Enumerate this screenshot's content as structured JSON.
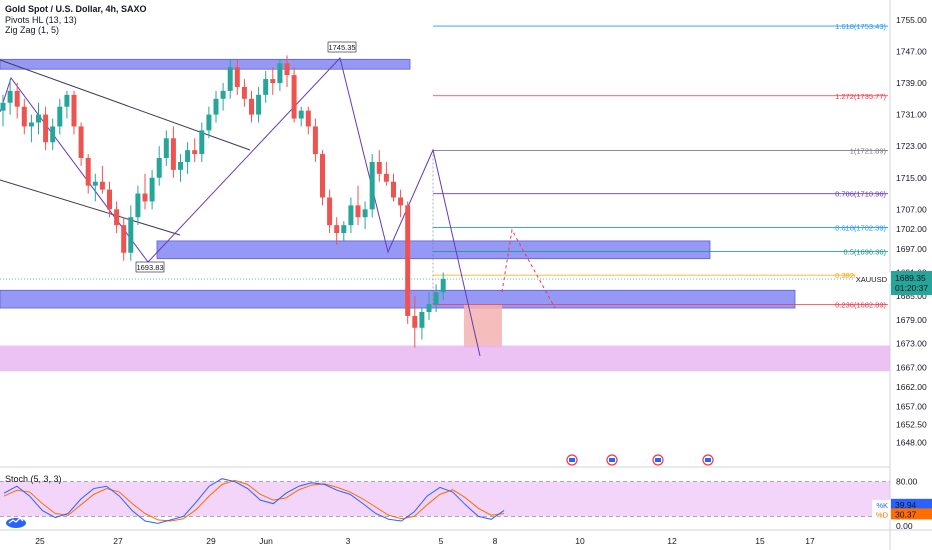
{
  "legend": {
    "title": "Gold Spot / U.S. Dollar, 4h, SAXO",
    "indicators": [
      "Pivots HL (13, 13)",
      "Zig Zag (1, 5)"
    ]
  },
  "colors": {
    "up": "#26a69a",
    "down": "#ef5350",
    "zone_blue": "#7b7ff2",
    "zone_pink": "#e7b3f2",
    "fib_blue": "#2196f3",
    "fib_red": "#f23645",
    "fib_purple": "#673ab7",
    "fib_teal": "#089981",
    "fib_orange": "#f7a600",
    "fib_gray": "#787b86",
    "stoch_k": "#2962ff",
    "stoch_d": "#ff6d00"
  },
  "chart_data": {
    "type": "candlestick",
    "symbol": "XAUUSD",
    "interval": "4h",
    "ylim": [
      1643,
      1758
    ],
    "y_ticks": [
      "1755.00",
      "1747.00",
      "1739.00",
      "1731.00",
      "1723.00",
      "1715.00",
      "1707.00",
      "1702.00",
      "1697.00",
      "1691.00",
      "1685.00",
      "1679.00",
      "1673.00",
      "1667.00",
      "1662.00",
      "1657.00",
      "1652.50",
      "1648.00"
    ],
    "x_ticks": [
      "25",
      "27",
      "29",
      "Jun",
      "3",
      "5",
      "8",
      "10",
      "12",
      "15",
      "17"
    ],
    "last_price": "1689.35",
    "countdown": "01:20:37",
    "pivot_labels": [
      {
        "text": "1745.35",
        "value": 1745.35
      },
      {
        "text": "1693.83",
        "value": 1693.83
      }
    ],
    "fib_levels": [
      {
        "label": "1.618(1753.43)",
        "value": 1753.43,
        "color": "#2196f3"
      },
      {
        "label": "1.272(1735.77)",
        "value": 1735.77,
        "color": "#f23645"
      },
      {
        "label": "1(1721.89)",
        "value": 1721.89,
        "color": "#787b86"
      },
      {
        "label": "0.786(1710.96)",
        "value": 1710.96,
        "color": "#673ab7"
      },
      {
        "label": "0.618(1702.39)",
        "value": 1702.39,
        "color": "#2196f3"
      },
      {
        "label": "0.5(1696.36)",
        "value": 1696.36,
        "color": "#089981"
      },
      {
        "label": "0.382(1690.34)",
        "value": 1690.34,
        "color": "#f7a600"
      },
      {
        "label": "0.236(1682.89)",
        "value": 1682.89,
        "color": "#f23645"
      }
    ],
    "candles": [
      [
        1732,
        1736,
        1728,
        1734
      ],
      [
        1734,
        1740,
        1731,
        1737
      ],
      [
        1737,
        1739,
        1730,
        1733
      ],
      [
        1733,
        1735,
        1726,
        1728
      ],
      [
        1728,
        1731,
        1724,
        1729
      ],
      [
        1729,
        1734,
        1726,
        1731
      ],
      [
        1731,
        1733,
        1722,
        1724
      ],
      [
        1724,
        1730,
        1722,
        1728
      ],
      [
        1728,
        1735,
        1726,
        1733
      ],
      [
        1733,
        1737,
        1730,
        1736
      ],
      [
        1736,
        1737,
        1726,
        1728
      ],
      [
        1728,
        1729,
        1718,
        1720
      ],
      [
        1720,
        1721,
        1711,
        1713
      ],
      [
        1713,
        1716,
        1709,
        1714
      ],
      [
        1714,
        1718,
        1711,
        1712
      ],
      [
        1712,
        1714,
        1705,
        1707
      ],
      [
        1707,
        1709,
        1701,
        1703
      ],
      [
        1703,
        1705,
        1694,
        1696
      ],
      [
        1696,
        1708,
        1694,
        1705
      ],
      [
        1705,
        1713,
        1703,
        1711
      ],
      [
        1711,
        1716,
        1707,
        1709
      ],
      [
        1709,
        1717,
        1707,
        1715
      ],
      [
        1715,
        1723,
        1713,
        1720
      ],
      [
        1720,
        1727,
        1718,
        1725
      ],
      [
        1725,
        1728,
        1715,
        1717
      ],
      [
        1717,
        1721,
        1714,
        1719
      ],
      [
        1719,
        1724,
        1716,
        1722
      ],
      [
        1722,
        1725,
        1719,
        1721
      ],
      [
        1721,
        1729,
        1719,
        1727
      ],
      [
        1727,
        1733,
        1725,
        1731
      ],
      [
        1731,
        1737,
        1729,
        1735
      ],
      [
        1735,
        1739,
        1732,
        1737
      ],
      [
        1737,
        1745,
        1735,
        1743
      ],
      [
        1743,
        1745,
        1736,
        1738
      ],
      [
        1738,
        1740,
        1733,
        1735
      ],
      [
        1735,
        1737,
        1729,
        1731
      ],
      [
        1731,
        1738,
        1729,
        1736
      ],
      [
        1736,
        1742,
        1734,
        1740
      ],
      [
        1740,
        1743,
        1736,
        1739
      ],
      [
        1739,
        1745,
        1737,
        1744
      ],
      [
        1744,
        1746,
        1738,
        1741
      ],
      [
        1741,
        1743,
        1729,
        1730
      ],
      [
        1730,
        1733,
        1728,
        1732
      ],
      [
        1732,
        1733,
        1726,
        1728
      ],
      [
        1728,
        1730,
        1719,
        1721
      ],
      [
        1721,
        1722,
        1708,
        1710
      ],
      [
        1710,
        1712,
        1701,
        1703
      ],
      [
        1703,
        1705,
        1698,
        1701
      ],
      [
        1701,
        1704,
        1699,
        1703
      ],
      [
        1703,
        1710,
        1701,
        1708
      ],
      [
        1708,
        1713,
        1703,
        1705
      ],
      [
        1705,
        1709,
        1702,
        1707
      ],
      [
        1707,
        1721,
        1705,
        1719
      ],
      [
        1719,
        1722,
        1714,
        1716
      ],
      [
        1716,
        1719,
        1713,
        1714
      ],
      [
        1714,
        1716,
        1709,
        1710
      ],
      [
        1710,
        1712,
        1705,
        1708
      ],
      [
        1708,
        1709,
        1678,
        1680
      ],
      [
        1680,
        1685,
        1672,
        1677
      ],
      [
        1677,
        1682,
        1674,
        1681
      ],
      [
        1681,
        1686,
        1679,
        1683
      ],
      [
        1683,
        1688,
        1681,
        1686
      ],
      [
        1686,
        1691,
        1684,
        1689.35
      ]
    ],
    "zones": [
      {
        "from": 1745,
        "to": 1742.5,
        "color": "#7b7ff2"
      },
      {
        "from": 1699,
        "to": 1694.5,
        "color": "#7b7ff2"
      },
      {
        "from": 1686.5,
        "to": 1682,
        "color": "#7b7ff2"
      },
      {
        "from": 1683,
        "to": 1672,
        "color": "#f4b2b2"
      },
      {
        "from": 1672.5,
        "to": 1666,
        "color": "#e7b3f2"
      }
    ],
    "stochastic": {
      "title": "Stoch (5, 3, 3)",
      "k_label": "%K",
      "k_value": "39.94",
      "d_label": "%D",
      "d_value": "30.37",
      "y_ticks": [
        "80.00",
        "20.00",
        "0.00"
      ],
      "ylim": [
        0,
        100
      ],
      "k": [
        60,
        72,
        55,
        30,
        18,
        25,
        50,
        68,
        72,
        55,
        30,
        12,
        8,
        14,
        20,
        45,
        72,
        85,
        80,
        68,
        48,
        42,
        60,
        72,
        78,
        75,
        65,
        58,
        42,
        25,
        15,
        12,
        28,
        55,
        70,
        62,
        40,
        20,
        15,
        30
      ],
      "d": [
        55,
        65,
        62,
        42,
        25,
        22,
        40,
        58,
        68,
        62,
        42,
        25,
        14,
        12,
        16,
        32,
        55,
        75,
        82,
        75,
        58,
        48,
        52,
        66,
        74,
        76,
        70,
        62,
        50,
        36,
        22,
        16,
        20,
        40,
        58,
        66,
        52,
        34,
        22,
        25
      ]
    }
  }
}
